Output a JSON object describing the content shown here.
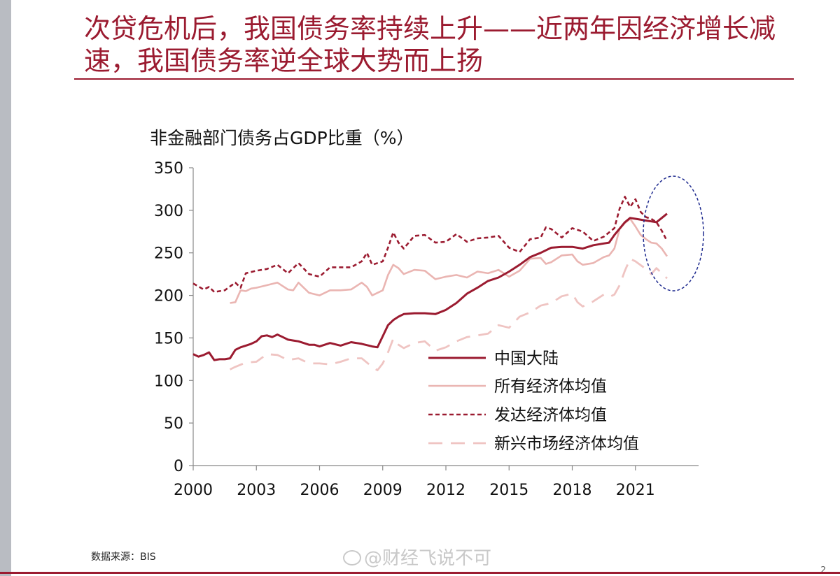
{
  "header": {
    "title": "次贷危机后，我国债务率持续上升——近两年因经济增长减速，我国债务率逆全球大势而上扬"
  },
  "footer": {
    "source": "数据来源：BIS",
    "watermark": "@财经飞说不可",
    "page_number": "2"
  },
  "colors": {
    "china": "#9b1b30",
    "all": "#eab5b2",
    "developed": "#9b1b30",
    "emerging": "#efc4c2",
    "accent": "#9b1b30",
    "highlight": "#1f2b8f"
  },
  "chart_data": {
    "type": "line",
    "title": "非金融部门债务占GDP比重（%）",
    "xlabel": "",
    "ylabel": "",
    "xlim": [
      2000,
      2022.75
    ],
    "ylim": [
      0,
      350
    ],
    "yticks": [
      "0",
      "50",
      "100",
      "150",
      "200",
      "250",
      "300",
      "350"
    ],
    "xticks": [
      "2000",
      "2003",
      "2006",
      "2009",
      "2012",
      "2015",
      "2018",
      "2021"
    ],
    "grid": false,
    "legend_position": "center-right",
    "annotation": "dashed ellipse highlighting 2020-2022",
    "series": [
      {
        "name": "中国大陆",
        "style": "solid",
        "x": [
          2000,
          2000.25,
          2000.5,
          2000.75,
          2001,
          2001.25,
          2001.5,
          2001.75,
          2002,
          2002.25,
          2002.5,
          2002.75,
          2003,
          2003.25,
          2003.5,
          2003.75,
          2004,
          2004.25,
          2004.5,
          2004.75,
          2005,
          2005.25,
          2005.5,
          2005.75,
          2006,
          2006.5,
          2007,
          2007.5,
          2008,
          2008.5,
          2008.75,
          2009,
          2009.25,
          2009.5,
          2009.75,
          2010,
          2010.5,
          2011,
          2011.5,
          2012,
          2012.5,
          2013,
          2013.5,
          2014,
          2014.5,
          2015,
          2015.5,
          2016,
          2016.5,
          2017,
          2017.5,
          2018,
          2018.5,
          2019,
          2019.5,
          2019.75,
          2020,
          2020.5,
          2020.75,
          2021,
          2021.5,
          2021.75,
          2022,
          2022.25,
          2022.5
        ],
        "values": [
          131,
          128,
          130,
          133,
          124,
          125,
          125,
          126,
          136,
          139,
          141,
          143,
          146,
          152,
          153,
          151,
          154,
          151,
          148,
          147,
          146,
          144,
          142,
          142,
          140,
          144,
          141,
          145,
          143,
          140,
          139,
          152,
          165,
          171,
          175,
          178,
          179,
          179,
          178,
          183,
          191,
          202,
          209,
          217,
          221,
          228,
          236,
          245,
          250,
          256,
          257,
          257,
          255,
          259,
          261,
          262,
          271,
          286,
          291,
          290,
          288,
          287,
          286,
          291,
          296
        ]
      },
      {
        "name": "所有经济体均值",
        "style": "solid",
        "x": [
          2001.75,
          2002,
          2002.25,
          2002.5,
          2002.75,
          2003,
          2003.5,
          2004,
          2004.5,
          2004.75,
          2005,
          2005.5,
          2006,
          2006.5,
          2007,
          2007.5,
          2008,
          2008.25,
          2008.5,
          2009,
          2009.25,
          2009.5,
          2009.75,
          2010,
          2010.5,
          2011,
          2011.5,
          2012,
          2012.5,
          2013,
          2013.5,
          2014,
          2014.5,
          2015,
          2015.5,
          2016,
          2016.5,
          2016.75,
          2017,
          2017.5,
          2018,
          2018.25,
          2018.5,
          2019,
          2019.5,
          2019.75,
          2020,
          2020.25,
          2020.5,
          2020.75,
          2021,
          2021.25,
          2021.5,
          2021.75,
          2022,
          2022.25,
          2022.5
        ],
        "values": [
          191,
          192,
          206,
          205,
          208,
          209,
          212,
          215,
          207,
          206,
          215,
          203,
          200,
          206,
          206,
          207,
          215,
          210,
          200,
          206,
          224,
          236,
          232,
          225,
          230,
          229,
          219,
          222,
          224,
          221,
          228,
          226,
          230,
          222,
          229,
          243,
          244,
          237,
          239,
          247,
          248,
          240,
          236,
          238,
          245,
          247,
          255,
          278,
          285,
          290,
          281,
          271,
          266,
          262,
          261,
          255,
          246
        ]
      },
      {
        "name": "发达经济体均值",
        "style": "dotted",
        "x": [
          2000,
          2000.5,
          2000.75,
          2001,
          2001.5,
          2002,
          2002.25,
          2002.5,
          2003,
          2003.5,
          2004,
          2004.5,
          2005,
          2005.5,
          2006,
          2006.5,
          2007,
          2007.5,
          2008,
          2008.25,
          2008.5,
          2009,
          2009.25,
          2009.5,
          2009.75,
          2010,
          2010.5,
          2011,
          2011.5,
          2012,
          2012.5,
          2013,
          2013.5,
          2014,
          2014.5,
          2015,
          2015.5,
          2016,
          2016.5,
          2016.75,
          2017,
          2017.5,
          2018,
          2018.5,
          2019,
          2019.5,
          2019.75,
          2020,
          2020.25,
          2020.5,
          2020.75,
          2021,
          2021.25,
          2021.5,
          2021.75,
          2022,
          2022.25,
          2022.5
        ],
        "values": [
          214,
          207,
          210,
          204,
          206,
          215,
          209,
          226,
          229,
          231,
          236,
          226,
          238,
          225,
          222,
          233,
          233,
          233,
          240,
          250,
          236,
          240,
          256,
          274,
          262,
          255,
          270,
          271,
          262,
          263,
          272,
          263,
          267,
          268,
          270,
          256,
          251,
          266,
          268,
          280,
          278,
          268,
          279,
          275,
          264,
          269,
          274,
          279,
          302,
          316,
          304,
          313,
          298,
          292,
          290,
          286,
          276,
          264
        ]
      },
      {
        "name": "新兴市场经济体均值",
        "style": "dashed",
        "x": [
          2001.75,
          2002,
          2002.5,
          2003,
          2003.5,
          2004,
          2004.5,
          2005,
          2005.5,
          2006,
          2006.5,
          2007,
          2007.5,
          2008,
          2008.5,
          2008.75,
          2009,
          2009.25,
          2009.5,
          2009.75,
          2010,
          2010.5,
          2011,
          2011.5,
          2012,
          2012.5,
          2013,
          2013.5,
          2014,
          2014.5,
          2015,
          2015.5,
          2016,
          2016.5,
          2017,
          2017.5,
          2018,
          2018.25,
          2018.5,
          2019,
          2019.5,
          2019.75,
          2020,
          2020.25,
          2020.5,
          2020.75,
          2021,
          2021.5,
          2021.75,
          2022,
          2022.25,
          2022.5
        ],
        "values": [
          113,
          116,
          121,
          122,
          131,
          130,
          124,
          126,
          120,
          120,
          119,
          122,
          126,
          126,
          116,
          112,
          120,
          133,
          149,
          142,
          138,
          144,
          146,
          135,
          139,
          146,
          151,
          153,
          155,
          165,
          162,
          175,
          180,
          188,
          191,
          199,
          202,
          192,
          187,
          193,
          201,
          198,
          201,
          212,
          229,
          243,
          240,
          231,
          225,
          232,
          226,
          220
        ]
      }
    ]
  }
}
